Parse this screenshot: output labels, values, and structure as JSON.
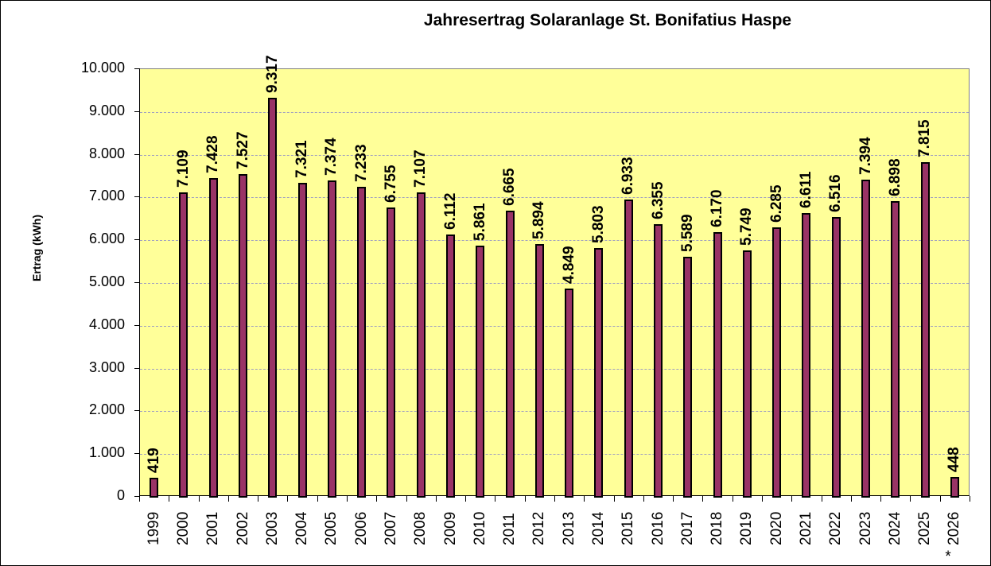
{
  "chart_data": {
    "type": "bar",
    "title": "Jahresertrag Solaranlage St. Bonifatius Haspe",
    "xlabel": "",
    "ylabel": "Ertrag (kWh)",
    "ylim": [
      0,
      10000
    ],
    "yticks": [
      "0",
      "1.000",
      "2.000",
      "3.000",
      "4.000",
      "5.000",
      "6.000",
      "7.000",
      "8.000",
      "9.000",
      "10.000"
    ],
    "grid": true,
    "legend": null,
    "categories": [
      "1999",
      "2000",
      "2001",
      "2002",
      "2003",
      "2004",
      "2005",
      "2006",
      "2007",
      "2008",
      "2009",
      "2010",
      "2011",
      "2012",
      "2013",
      "2014",
      "2015",
      "2016",
      "2017",
      "2018",
      "2019",
      "2020",
      "2021",
      "2022",
      "2023",
      "2024",
      "2025",
      "* 2026"
    ],
    "values": [
      419,
      7109,
      7428,
      7527,
      9317,
      7321,
      7374,
      7233,
      6755,
      7107,
      6112,
      5861,
      6665,
      5894,
      4849,
      5803,
      6933,
      6355,
      5589,
      6170,
      5749,
      6285,
      6611,
      6516,
      7394,
      6898,
      7815,
      448
    ],
    "value_labels": [
      "419",
      "7.109",
      "7.428",
      "7.527",
      "9.317",
      "7.321",
      "7.374",
      "7.233",
      "6.755",
      "7.107",
      "6.112",
      "5.861",
      "6.665",
      "5.894",
      "4.849",
      "5.803",
      "6.933",
      "6.355",
      "5.589",
      "6.170",
      "5.749",
      "6.285",
      "6.611",
      "6.516",
      "7.394",
      "6.898",
      "7.815",
      "448"
    ],
    "colors": {
      "bar": "#993366",
      "plot_background": "#ffff99",
      "grid": "#a0a0c0"
    }
  }
}
